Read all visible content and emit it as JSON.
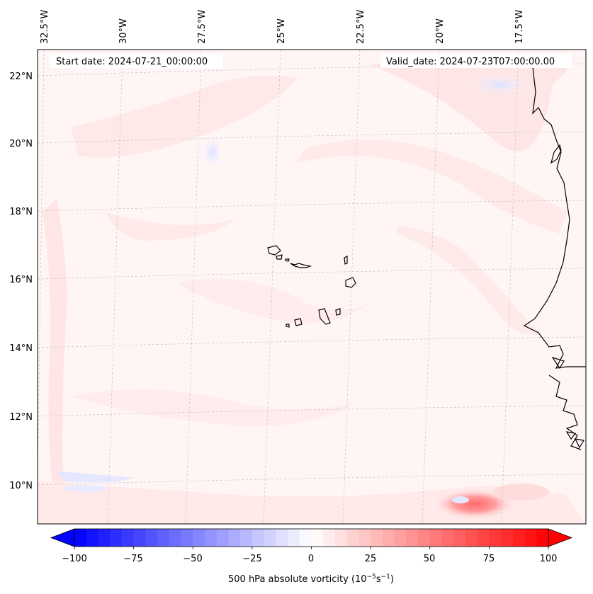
{
  "header": {
    "start_date": "Start date: 2024-07-21_00:00:00",
    "valid_date": "Valid_date: 2024-07-23T07:00:00.00"
  },
  "map": {
    "lon_labels": [
      "32.5°W",
      "30°W",
      "27.5°W",
      "25°W",
      "22.5°W",
      "20°W",
      "17.5°W"
    ],
    "lat_labels": [
      "22°N",
      "20°N",
      "18°N",
      "16°N",
      "14°N",
      "12°N",
      "10°N"
    ]
  },
  "colorbar": {
    "ticks": [
      "−100",
      "−75",
      "−50",
      "−25",
      "0",
      "25",
      "50",
      "75",
      "100"
    ],
    "label": "500 hPa absolute vorticity (10",
    "unit_exp1": "−5",
    "unit_mid": "s",
    "unit_exp2": "−1",
    "unit_close": ")",
    "min_color": "#0000ff",
    "mid_color": "#ffffff",
    "max_color": "#ff0000"
  }
}
